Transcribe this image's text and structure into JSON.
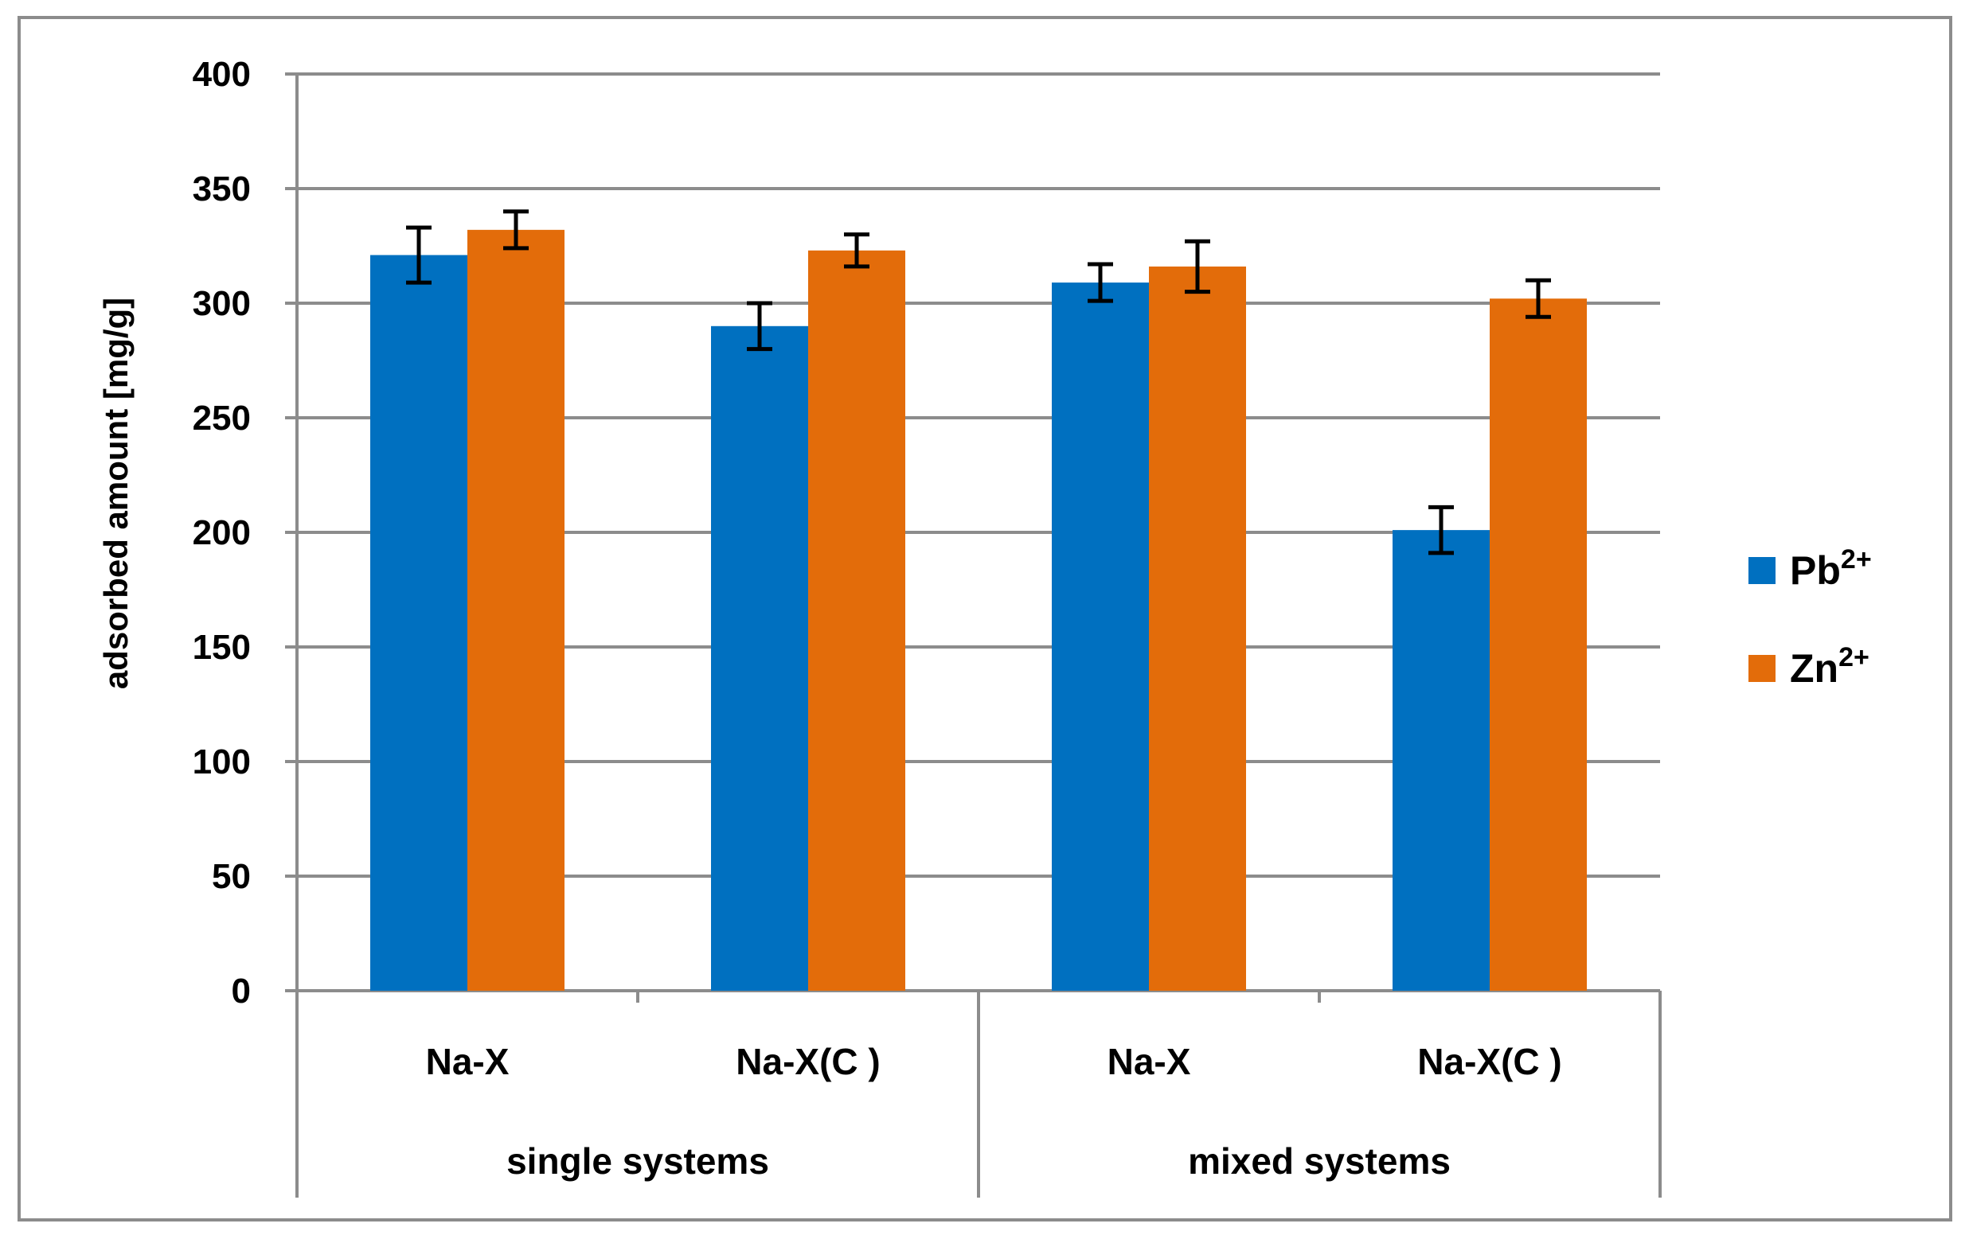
{
  "chart_data": {
    "type": "bar",
    "ylabel": "adsorbed amount [mg/g]",
    "ylim": [
      0,
      400
    ],
    "ytick_step": 50,
    "yticks": [
      "0",
      "50",
      "100",
      "150",
      "200",
      "250",
      "300",
      "350",
      "400"
    ],
    "grid": true,
    "legend_position": "right",
    "groups": [
      {
        "label": "single systems",
        "categories": [
          "Na-X",
          "Na-X(C )"
        ]
      },
      {
        "label": "mixed systems",
        "categories": [
          "Na-X",
          "Na-X(C )"
        ]
      }
    ],
    "categories": [
      "Na-X",
      "Na-X(C )",
      "Na-X",
      "Na-X(C )"
    ],
    "series": [
      {
        "name_base": "Pb",
        "name_sup": "2+",
        "color": "#0070c0",
        "values": [
          321,
          290,
          309,
          201
        ],
        "errors": [
          12,
          10,
          8,
          10
        ]
      },
      {
        "name_base": "Zn",
        "name_sup": "2+",
        "color": "#e36c0a",
        "values": [
          332,
          323,
          316,
          302
        ],
        "errors": [
          8,
          7,
          11,
          8
        ]
      }
    ]
  }
}
